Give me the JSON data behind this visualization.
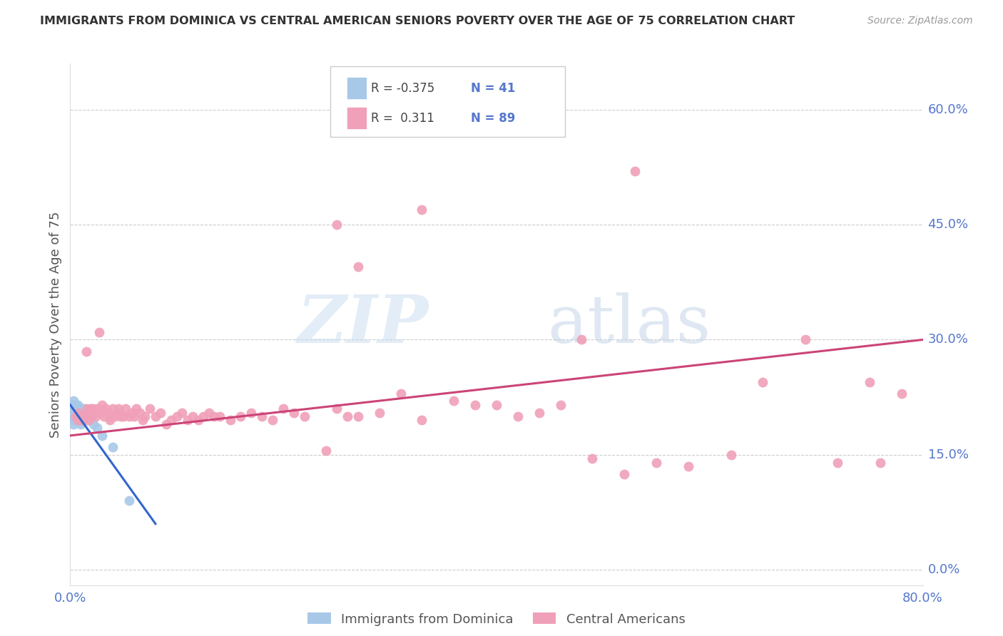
{
  "title": "IMMIGRANTS FROM DOMINICA VS CENTRAL AMERICAN SENIORS POVERTY OVER THE AGE OF 75 CORRELATION CHART",
  "source": "Source: ZipAtlas.com",
  "ylabel": "Seniors Poverty Over the Age of 75",
  "ytick_labels": [
    "0.0%",
    "15.0%",
    "30.0%",
    "45.0%",
    "60.0%"
  ],
  "ytick_values": [
    0.0,
    0.15,
    0.3,
    0.45,
    0.6
  ],
  "xlim": [
    0.0,
    0.8
  ],
  "ylim": [
    -0.02,
    0.66
  ],
  "legend_blue_r": "-0.375",
  "legend_blue_n": "41",
  "legend_pink_r": "0.311",
  "legend_pink_n": "89",
  "legend_label_blue": "Immigrants from Dominica",
  "legend_label_pink": "Central Americans",
  "watermark_zip": "ZIP",
  "watermark_atlas": "atlas",
  "dot_color_blue": "#a8c8e8",
  "dot_color_pink": "#f0a0b8",
  "line_color_blue": "#3366cc",
  "line_color_pink": "#cc4477",
  "axis_color": "#5577cc",
  "grid_color": "#cccccc",
  "title_color": "#333333",
  "source_color": "#999999",
  "blue_scatter_x": [
    0.001,
    0.002,
    0.002,
    0.003,
    0.003,
    0.003,
    0.004,
    0.004,
    0.005,
    0.005,
    0.005,
    0.006,
    0.006,
    0.007,
    0.007,
    0.007,
    0.008,
    0.008,
    0.008,
    0.009,
    0.009,
    0.01,
    0.01,
    0.01,
    0.011,
    0.011,
    0.012,
    0.012,
    0.013,
    0.013,
    0.014,
    0.015,
    0.016,
    0.017,
    0.018,
    0.02,
    0.022,
    0.025,
    0.03,
    0.04,
    0.055
  ],
  "blue_scatter_y": [
    0.21,
    0.2,
    0.215,
    0.19,
    0.205,
    0.22,
    0.2,
    0.195,
    0.195,
    0.21,
    0.215,
    0.2,
    0.205,
    0.195,
    0.205,
    0.215,
    0.195,
    0.2,
    0.21,
    0.2,
    0.205,
    0.195,
    0.205,
    0.19,
    0.2,
    0.21,
    0.195,
    0.2,
    0.205,
    0.21,
    0.2,
    0.195,
    0.195,
    0.205,
    0.195,
    0.2,
    0.19,
    0.185,
    0.175,
    0.16,
    0.09
  ],
  "pink_scatter_x": [
    0.005,
    0.007,
    0.008,
    0.01,
    0.011,
    0.012,
    0.013,
    0.015,
    0.016,
    0.018,
    0.019,
    0.02,
    0.021,
    0.022,
    0.024,
    0.025,
    0.027,
    0.028,
    0.03,
    0.032,
    0.033,
    0.035,
    0.037,
    0.038,
    0.04,
    0.042,
    0.044,
    0.045,
    0.047,
    0.05,
    0.052,
    0.055,
    0.058,
    0.06,
    0.062,
    0.065,
    0.068,
    0.07,
    0.075,
    0.08,
    0.085,
    0.09,
    0.095,
    0.1,
    0.105,
    0.11,
    0.115,
    0.12,
    0.125,
    0.13,
    0.135,
    0.14,
    0.15,
    0.16,
    0.17,
    0.18,
    0.19,
    0.2,
    0.21,
    0.22,
    0.24,
    0.25,
    0.26,
    0.27,
    0.29,
    0.31,
    0.33,
    0.36,
    0.38,
    0.4,
    0.42,
    0.44,
    0.46,
    0.49,
    0.52,
    0.55,
    0.58,
    0.62,
    0.65,
    0.69,
    0.72,
    0.75,
    0.76,
    0.78,
    0.33,
    0.25,
    0.27,
    0.53,
    0.48
  ],
  "pink_scatter_y": [
    0.2,
    0.195,
    0.205,
    0.195,
    0.2,
    0.195,
    0.2,
    0.285,
    0.21,
    0.195,
    0.21,
    0.2,
    0.21,
    0.205,
    0.2,
    0.21,
    0.31,
    0.205,
    0.215,
    0.2,
    0.21,
    0.205,
    0.195,
    0.2,
    0.21,
    0.2,
    0.205,
    0.21,
    0.2,
    0.2,
    0.21,
    0.2,
    0.205,
    0.2,
    0.21,
    0.205,
    0.195,
    0.2,
    0.21,
    0.2,
    0.205,
    0.19,
    0.195,
    0.2,
    0.205,
    0.195,
    0.2,
    0.195,
    0.2,
    0.205,
    0.2,
    0.2,
    0.195,
    0.2,
    0.205,
    0.2,
    0.195,
    0.21,
    0.205,
    0.2,
    0.155,
    0.21,
    0.2,
    0.2,
    0.205,
    0.23,
    0.195,
    0.22,
    0.215,
    0.215,
    0.2,
    0.205,
    0.215,
    0.145,
    0.125,
    0.14,
    0.135,
    0.15,
    0.245,
    0.3,
    0.14,
    0.245,
    0.14,
    0.23,
    0.47,
    0.45,
    0.395,
    0.52,
    0.3
  ],
  "blue_line_x": [
    0.0,
    0.08
  ],
  "blue_line_y": [
    0.215,
    0.06
  ],
  "pink_line_x": [
    0.0,
    0.8
  ],
  "pink_line_y": [
    0.175,
    0.3
  ]
}
